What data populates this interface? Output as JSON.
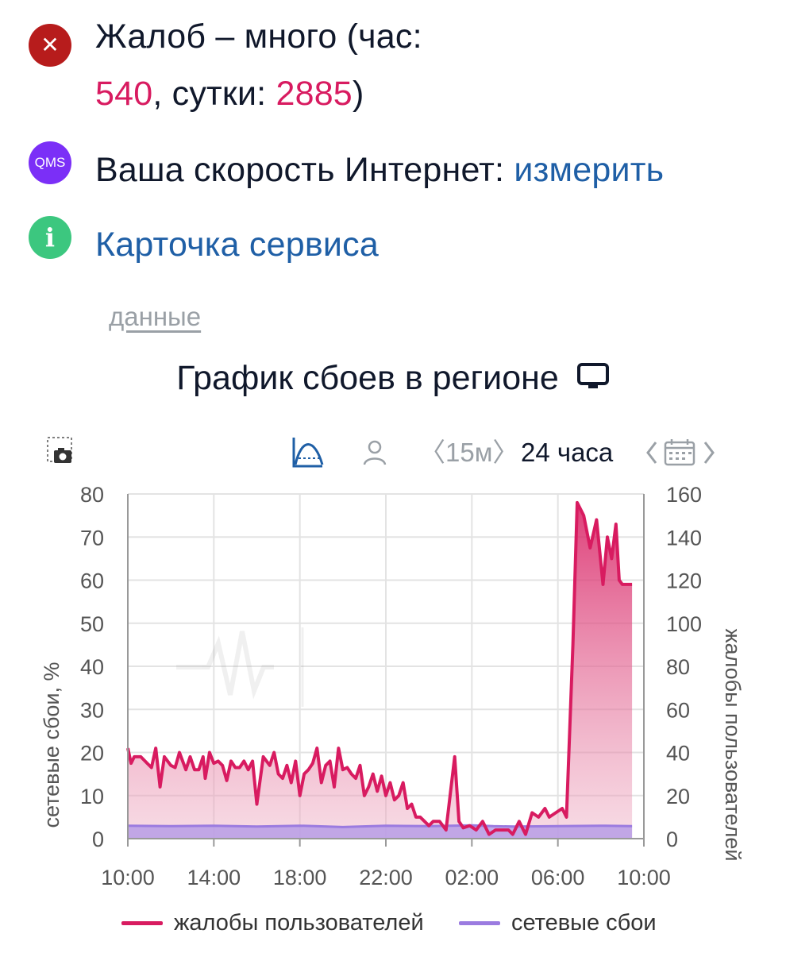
{
  "status": {
    "complaints_prefix": "Жалоб – много (час:",
    "hour_value": "540",
    "day_prefix": ", сутки: ",
    "day_value": "2885",
    "day_suffix": ")",
    "close_glyph": "✕"
  },
  "speed": {
    "badge": "QMS",
    "label": "Ваша скорость Интернет: ",
    "link": "измерить"
  },
  "service": {
    "badge": "i",
    "link": "Карточка сервиса"
  },
  "data_link": "данные",
  "chart_heading": "График сбоев в регионе",
  "toolbar": {
    "interval": "〈15м〉",
    "period": "24 часа",
    "icons": [
      "camera-icon",
      "curve-icon",
      "user-icon",
      "calendar-icon"
    ]
  },
  "colors": {
    "complaints": "#d81b60",
    "complaints_fill": "#eeb0c5",
    "network": "#9b7be0",
    "network_fill": "#b79ce6",
    "link": "#1f5fa6",
    "badge_red": "#b71c1c",
    "badge_purple": "#7b2ff7",
    "badge_green": "#3cc77f"
  },
  "chart_data": {
    "type": "area",
    "ylabel_left": "сетевые сбои, %",
    "ylabel_right": "жалобы пользователей",
    "y_left_ticks": [
      0,
      10,
      20,
      30,
      40,
      50,
      60,
      70,
      80
    ],
    "y_right_ticks": [
      0,
      20,
      40,
      60,
      80,
      100,
      120,
      140,
      160
    ],
    "ylim_left": [
      0,
      80
    ],
    "ylim_right": [
      0,
      160
    ],
    "x_ticks": [
      "10:00",
      "14:00",
      "18:00",
      "22:00",
      "02:00",
      "06:00",
      "10:00"
    ],
    "xlim_hours": [
      0,
      24
    ],
    "grid": true,
    "legend_position": "bottom",
    "series": [
      {
        "name": "жалобы пользователей",
        "axis": "right",
        "x_hours": [
          0,
          0.15,
          0.3,
          0.6,
          0.9,
          1.1,
          1.3,
          1.5,
          1.7,
          2.0,
          2.2,
          2.4,
          2.7,
          2.9,
          3.1,
          3.3,
          3.5,
          3.6,
          3.8,
          4.0,
          4.2,
          4.4,
          4.6,
          4.8,
          5.0,
          5.2,
          5.4,
          5.6,
          5.8,
          6.0,
          6.3,
          6.6,
          6.8,
          7.0,
          7.2,
          7.4,
          7.6,
          7.8,
          8.0,
          8.2,
          8.4,
          8.6,
          8.8,
          9.0,
          9.2,
          9.4,
          9.6,
          9.8,
          10.0,
          10.2,
          10.4,
          10.6,
          10.8,
          11.0,
          11.2,
          11.4,
          11.6,
          11.8,
          12.0,
          12.2,
          12.4,
          12.6,
          12.8,
          13.0,
          13.2,
          13.4,
          13.6,
          13.8,
          14.0,
          14.2,
          14.5,
          14.8,
          15.2,
          15.4,
          15.6,
          15.9,
          16.2,
          16.5,
          16.8,
          17.1,
          17.4,
          17.7,
          17.9,
          18.2,
          18.5,
          18.8,
          19.1,
          19.4,
          19.6,
          19.9,
          20.2,
          20.4,
          20.7,
          20.9,
          21.2,
          21.5,
          21.8,
          22.1,
          22.3,
          22.5,
          22.7,
          22.85,
          23.0,
          23.15,
          23.3,
          23.45
        ],
        "values": [
          42,
          35,
          38,
          38,
          35,
          33,
          42,
          24,
          38,
          34,
          33,
          40,
          32,
          38,
          32,
          32,
          38,
          28,
          40,
          35,
          36,
          34,
          27,
          36,
          33,
          33,
          36,
          32,
          36,
          16,
          38,
          34,
          40,
          30,
          28,
          34,
          26,
          36,
          20,
          30,
          32,
          35,
          42,
          26,
          34,
          36,
          24,
          42,
          32,
          33,
          30,
          28,
          34,
          20,
          24,
          30,
          22,
          29,
          20,
          26,
          18,
          20,
          26,
          14,
          16,
          10,
          10,
          8,
          6,
          8,
          8,
          4,
          38,
          8,
          5,
          6,
          4,
          8,
          2,
          4,
          4,
          4,
          2,
          8,
          2,
          12,
          10,
          14,
          10,
          12,
          14,
          10,
          90,
          156,
          150,
          135,
          148,
          118,
          140,
          130,
          146,
          120,
          118,
          118,
          118,
          118
        ],
        "note_values_truncated_at_end": false
      },
      {
        "name": "сетевые сбои",
        "axis": "left",
        "x_hours": [
          0,
          2,
          4,
          6,
          8,
          10,
          12,
          14,
          16,
          17,
          18,
          20,
          22,
          23.45
        ],
        "values": [
          3,
          2.9,
          3,
          2.8,
          3,
          2.7,
          3,
          2.9,
          3.1,
          2.9,
          2.8,
          2.9,
          3,
          2.9
        ]
      }
    ]
  }
}
